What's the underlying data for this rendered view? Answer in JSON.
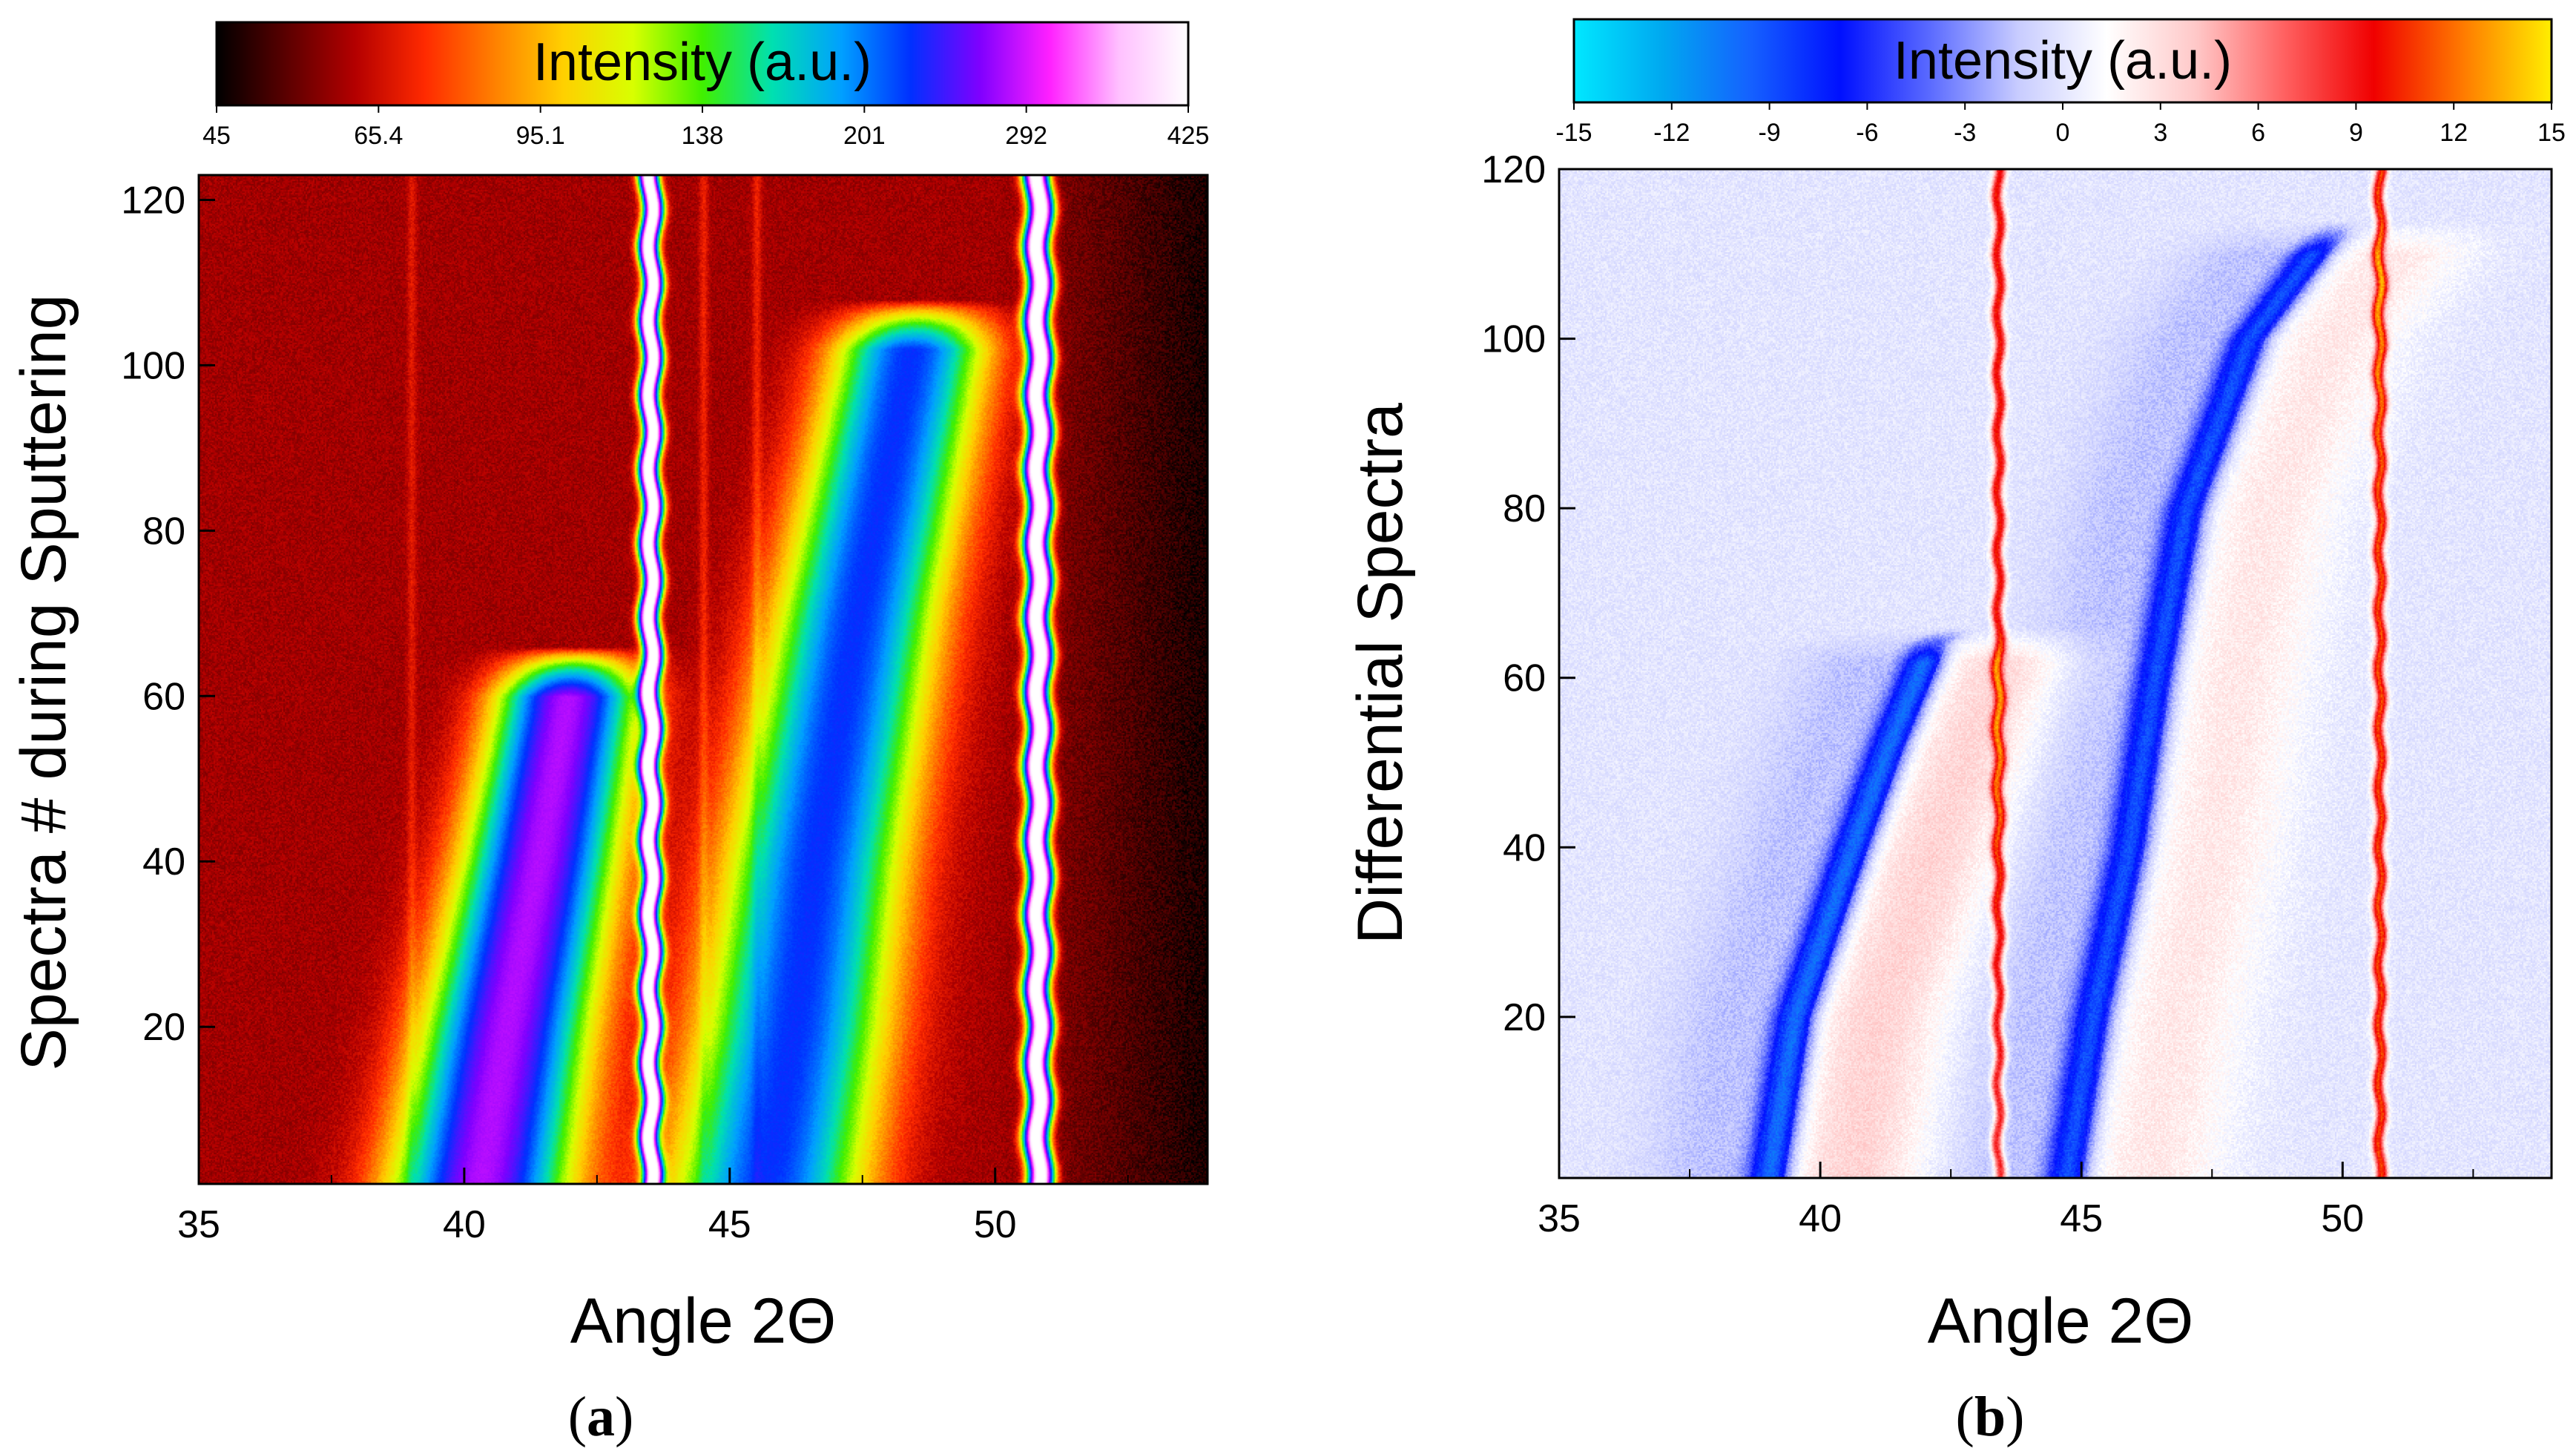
{
  "chart_data": [
    {
      "type": "heatmap",
      "panel_label": "a",
      "xlabel": "Angle 2Θ",
      "ylabel": "Spectra # during Sputtering",
      "colorbar_title": "Intensity (a.u.)",
      "colorbar_ticks": [
        "45",
        "65.4",
        "95.1",
        "138",
        "201",
        "292",
        "425"
      ],
      "colorbar_range": [
        45,
        425
      ],
      "colorbar_scale": "log",
      "colormap": [
        "#000000",
        "#5a0000",
        "#b40000",
        "#ff2a00",
        "#ff8000",
        "#ffd000",
        "#d8ff00",
        "#40f000",
        "#00e0b0",
        "#00a0ff",
        "#0030ff",
        "#8000ff",
        "#ff20ff",
        "#ffc0ff",
        "#ffffff"
      ],
      "x_ticks": [
        35,
        40,
        45,
        50
      ],
      "y_ticks": [
        20,
        40,
        60,
        80,
        100,
        120
      ],
      "xlim": [
        35,
        54
      ],
      "ylim": [
        1,
        123
      ],
      "background_level": 60,
      "features": [
        {
          "kind": "migrating_peak",
          "points": [
            [
              40.3,
              1
            ],
            [
              40.8,
              20
            ],
            [
              41.4,
              40
            ],
            [
              41.9,
              58
            ],
            [
              42.1,
              66
            ]
          ],
          "peak": 220,
          "width": 0.9
        },
        {
          "kind": "migrating_peak",
          "points": [
            [
              45.7,
              1
            ],
            [
              46.2,
              20
            ],
            [
              46.6,
              40
            ],
            [
              47.4,
              70
            ],
            [
              48.6,
              108
            ]
          ],
          "peak": 165,
          "width": 1.0
        },
        {
          "kind": "fixed_peak",
          "x": 43.5,
          "y_start": 1,
          "peak": 425,
          "width": 0.11
        },
        {
          "kind": "fixed_peak",
          "x": 50.8,
          "y_start": 1,
          "peak": 425,
          "width": 0.14
        },
        {
          "kind": "faint_line",
          "x": 39.0,
          "peak": 68
        },
        {
          "kind": "faint_line",
          "x": 44.5,
          "peak": 70
        },
        {
          "kind": "faint_line",
          "x": 45.5,
          "peak": 70
        }
      ]
    },
    {
      "type": "heatmap",
      "panel_label": "b",
      "xlabel": "Angle 2Θ",
      "ylabel": "Differential Spectra",
      "colorbar_title": "Intensity (a.u.)",
      "colorbar_ticks": [
        "-15",
        "-12",
        "-9",
        "-6",
        "-3",
        "0",
        "3",
        "6",
        "9",
        "12",
        "15"
      ],
      "colorbar_range": [
        -15,
        15
      ],
      "colormap": [
        "#00e8ff",
        "#00a8f0",
        "#1560ff",
        "#0010ff",
        "#5a6aff",
        "#c8ccff",
        "#ffffff",
        "#ffc8c8",
        "#ff6060",
        "#f00000",
        "#ff7a00",
        "#ffee00"
      ],
      "x_ticks": [
        35,
        40,
        45,
        50
      ],
      "y_ticks": [
        20,
        40,
        60,
        80,
        100,
        120
      ],
      "xlim": [
        35,
        54
      ],
      "ylim": [
        1,
        120
      ],
      "features": [
        {
          "kind": "shift_pair",
          "points": [
            [
              39.0,
              1
            ],
            [
              39.5,
              20
            ],
            [
              40.6,
              40
            ],
            [
              41.3,
              52
            ],
            [
              42.1,
              64
            ],
            [
              42.6,
              66
            ]
          ],
          "negative": -10,
          "positive": 3.5
        },
        {
          "kind": "shift_pair",
          "points": [
            [
              44.7,
              1
            ],
            [
              45.2,
              20
            ],
            [
              45.9,
              40
            ],
            [
              46.4,
              60
            ],
            [
              47.0,
              80
            ],
            [
              48.2,
              100
            ],
            [
              49.4,
              110
            ],
            [
              50.0,
              114
            ]
          ],
          "negative": -9,
          "positive": 2.5
        },
        {
          "kind": "fixed_positive",
          "x": 43.4,
          "value": 10
        },
        {
          "kind": "fixed_positive",
          "x": 50.7,
          "value": 11
        }
      ]
    }
  ]
}
